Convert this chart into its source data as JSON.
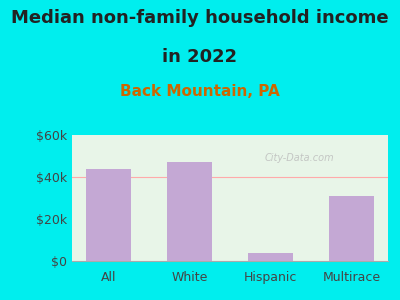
{
  "title_line1": "Median non-family household income",
  "title_line2": "in 2022",
  "subtitle": "Back Mountain, PA",
  "categories": [
    "All",
    "White",
    "Hispanic",
    "Multirace"
  ],
  "values": [
    44000,
    47000,
    4000,
    31000
  ],
  "bar_color": "#c4a8d4",
  "ylim": [
    0,
    60000
  ],
  "yticks": [
    0,
    20000,
    40000,
    60000
  ],
  "ytick_labels": [
    "$0",
    "$20k",
    "$40k",
    "$60k"
  ],
  "title_fontsize": 13,
  "subtitle_fontsize": 11,
  "tick_fontsize": 9,
  "background_outer": "#00eeee",
  "background_plot_top": "#e8f5e8",
  "background_plot_bottom": "#f5fff5",
  "watermark": "City-Data.com",
  "hline_value": 40000,
  "hline_color": "#ffaaaa"
}
